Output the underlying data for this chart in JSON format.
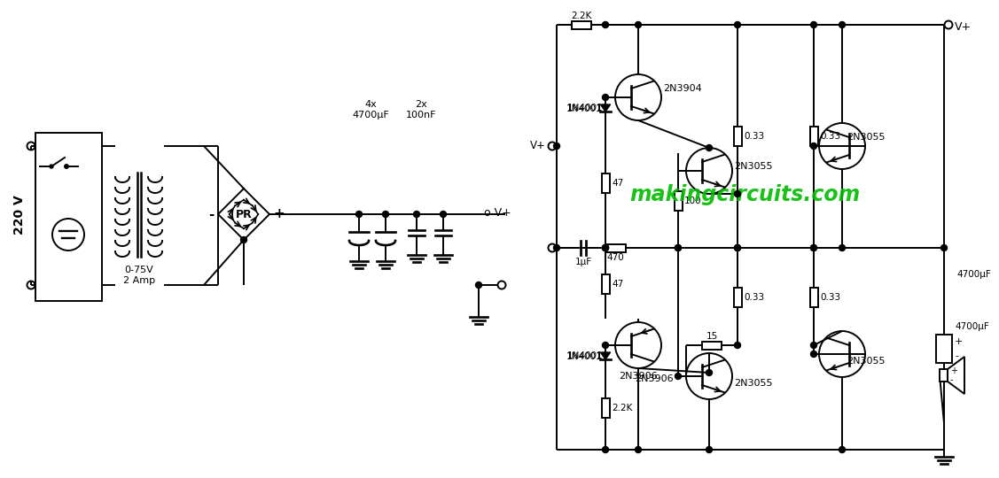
{
  "bg_color": "#ffffff",
  "line_color": "#000000",
  "watermark": "makingcircuits.com",
  "watermark_color": "#00bb00",
  "fig_width": 10.79,
  "fig_height": 5.2,
  "v220_label": "220 V",
  "transformer_label": "0-75V\n2 Amp",
  "cap1_label": "4x\n4700μF",
  "cap2_label": "2x\n100nF",
  "vplus_label": "V+",
  "r_22k_top": "2.2K",
  "r_47_top": "47",
  "r_100": "100",
  "r_033a": "0.33",
  "r_033b": "0.33",
  "r_033c": "0.33",
  "r_033d": "0.33",
  "r_470": "470",
  "c_1uf": "1μF",
  "r_47_bot": "47",
  "r_15": "15",
  "r_22k_bot": "2.2K",
  "r_47_bot2": "47",
  "c_4700": "4700μF",
  "t1_label": "2N3904",
  "t2_label": "2N3055",
  "t3_label": "2N3055",
  "t4_label": "2N3906",
  "t5_label": "2N3055",
  "t6_label": "2N3055",
  "d1_label": "1N4001",
  "d2_label": "1N4001"
}
